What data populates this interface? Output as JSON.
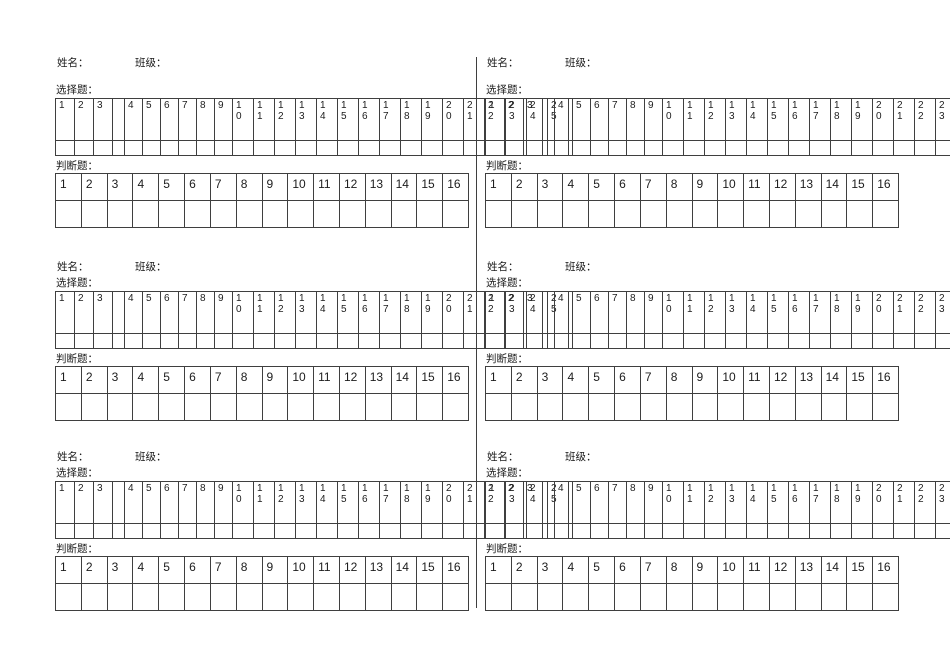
{
  "labels": {
    "name": "姓名：",
    "class": "班级：",
    "choice_section": "选择题：",
    "judge_section": "判断题："
  },
  "choice_table": {
    "numbers": [
      "1",
      "2",
      "3",
      "",
      "4",
      "5",
      "6",
      "7",
      "8",
      "9",
      "10",
      "11",
      "12",
      "13",
      "14",
      "15",
      "16",
      "17",
      "18",
      "19",
      "20",
      "21",
      "22",
      "23",
      "24",
      "25"
    ],
    "answer_row_empty": true
  },
  "judge_table": {
    "numbers": [
      "1",
      "2",
      "3",
      "4",
      "5",
      "6",
      "7",
      "8",
      "9",
      "10",
      "11",
      "12",
      "13",
      "14",
      "15",
      "16"
    ],
    "answer_row_empty": true
  },
  "block_count": 6,
  "grid": {
    "columns": 2,
    "rows": 3
  },
  "colors": {
    "background": "#ffffff",
    "text": "#1c1c1c",
    "table_border": "#3f3f3f",
    "divider": "#3f3f3f"
  }
}
